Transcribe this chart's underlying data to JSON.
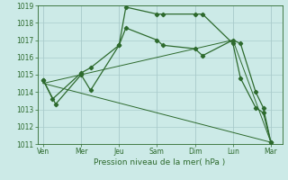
{
  "background_color": "#cceae7",
  "grid_color": "#aacccc",
  "line_color": "#2d6a2d",
  "title": "Pression niveau de la mer( hPa )",
  "x_labels": [
    "Ven",
    "Mer",
    "Jeu",
    "Sam",
    "Dim",
    "Lun",
    "Mar"
  ],
  "x_ticks": [
    0,
    1,
    2,
    3,
    4,
    5,
    6
  ],
  "ylim": [
    1011,
    1019
  ],
  "yticks": [
    1011,
    1012,
    1013,
    1014,
    1015,
    1016,
    1017,
    1018,
    1019
  ],
  "s1x": [
    0,
    0.25,
    1.0,
    1.25,
    2.0,
    2.18,
    3.0,
    3.15,
    4.0,
    4.2,
    5.0,
    5.2,
    5.6,
    5.8,
    6.0
  ],
  "s1y": [
    1014.7,
    1013.6,
    1015.1,
    1015.4,
    1016.7,
    1018.9,
    1018.5,
    1018.5,
    1018.5,
    1018.5,
    1016.8,
    1014.8,
    1013.1,
    1012.8,
    1011.1
  ],
  "s2x": [
    0,
    0.33,
    1.0,
    1.25,
    2.0,
    2.18,
    3.0,
    3.15,
    4.0,
    4.2,
    5.0,
    5.2,
    5.6,
    5.8,
    6.0
  ],
  "s2y": [
    1014.7,
    1013.3,
    1015.0,
    1014.1,
    1016.7,
    1017.7,
    1017.0,
    1016.7,
    1016.5,
    1016.1,
    1017.0,
    1016.8,
    1014.0,
    1013.1,
    1011.1
  ],
  "tl1x": [
    0,
    6.0
  ],
  "tl1y": [
    1014.5,
    1011.1
  ],
  "tl2x": [
    0,
    5.0,
    6.0
  ],
  "tl2y": [
    1014.5,
    1017.0,
    1011.1
  ]
}
